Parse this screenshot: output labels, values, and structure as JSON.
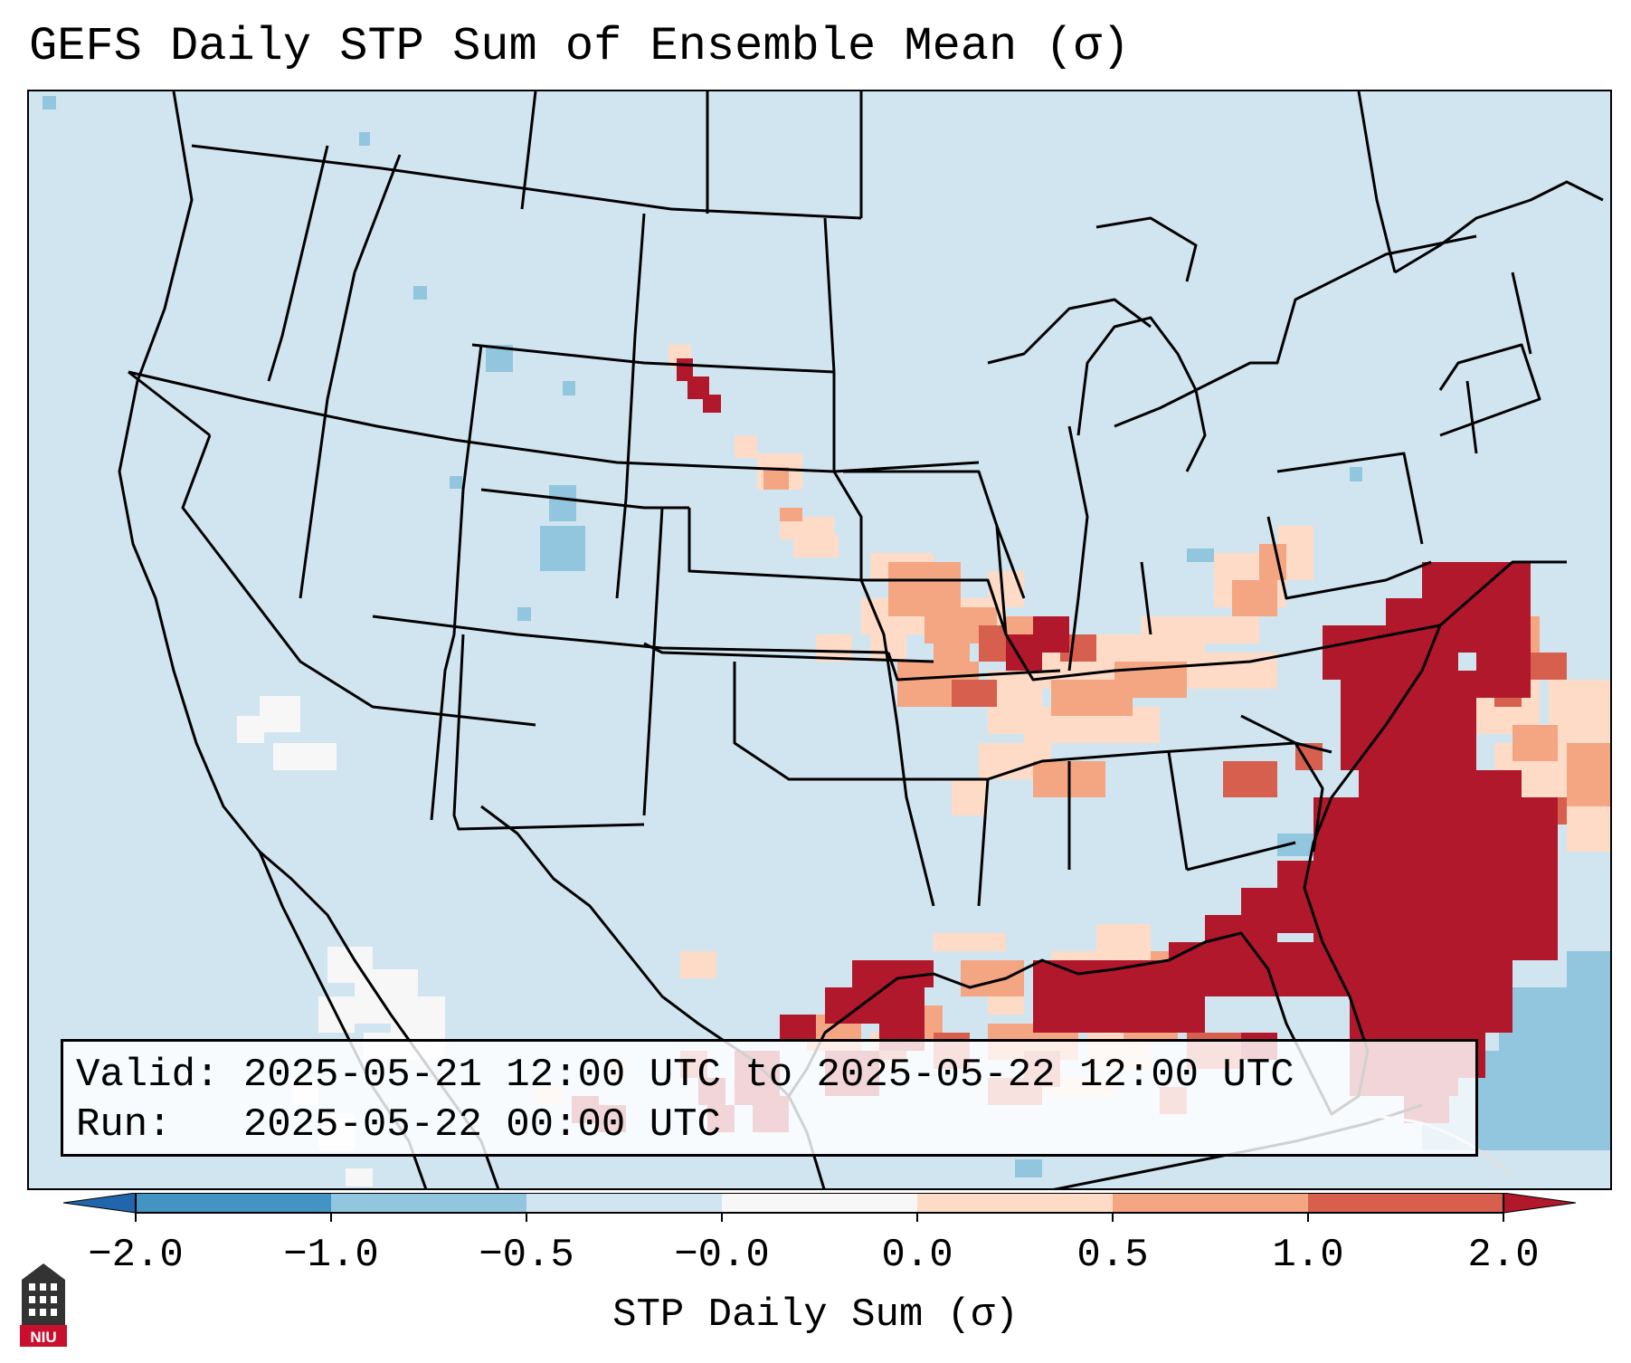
{
  "title": "GEFS Daily STP Sum of Ensemble Mean (σ)",
  "info": {
    "valid_line": "Valid: 2025-05-21 12:00 UTC to 2025-05-22 12:00 UTC",
    "run_line": "Run:   2025-05-22 00:00 UTC"
  },
  "colorbar": {
    "label": "STP Daily Sum (σ)",
    "ticks": [
      "−2.0",
      "−1.0",
      "−0.5",
      "−0.0",
      "0.0",
      "0.5",
      "1.0",
      "2.0"
    ],
    "colors": [
      "#4393c3",
      "#92c5de",
      "#d1e5f0",
      "#f7f7f7",
      "#fddbc7",
      "#f4a582",
      "#d6604d"
    ],
    "under_color": "#2166ac",
    "over_color": "#b2182b"
  },
  "logo": {
    "text": "NIU",
    "icon": "university-seal-icon"
  },
  "map": {
    "projection": "Lambert conformal, CONUS",
    "background_color": "#d1e5f0",
    "max_color": "#b2182b"
  }
}
